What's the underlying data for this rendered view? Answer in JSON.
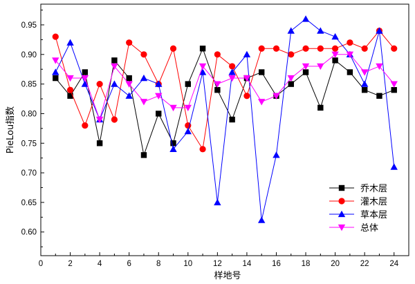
{
  "chart_data": {
    "type": "line",
    "title": "",
    "xlabel": "样地号",
    "ylabel": "PieLou指数",
    "xlim": [
      0,
      25
    ],
    "ylim": [
      0.56,
      0.985
    ],
    "x_ticks": [
      0,
      2,
      4,
      6,
      8,
      10,
      12,
      14,
      16,
      18,
      20,
      22,
      24
    ],
    "y_ticks": [
      0.6,
      0.65,
      0.7,
      0.75,
      0.8,
      0.85,
      0.9,
      0.95
    ],
    "x": [
      1,
      2,
      3,
      4,
      5,
      6,
      7,
      8,
      9,
      10,
      11,
      12,
      13,
      14,
      15,
      16,
      17,
      18,
      19,
      20,
      21,
      22,
      23,
      24
    ],
    "legend_position": "bottom-right",
    "series": [
      {
        "name": "乔木层",
        "color": "#000000",
        "marker": "square",
        "values": [
          0.86,
          0.83,
          0.87,
          0.75,
          0.89,
          0.86,
          0.73,
          0.8,
          0.75,
          0.85,
          0.91,
          0.84,
          0.79,
          0.86,
          0.87,
          0.83,
          0.85,
          0.87,
          0.81,
          0.89,
          0.87,
          0.84,
          0.83,
          0.84
        ]
      },
      {
        "name": "灌木层",
        "color": "#ff0000",
        "marker": "circle",
        "values": [
          0.93,
          0.84,
          0.78,
          0.85,
          0.79,
          0.92,
          0.9,
          0.85,
          0.91,
          0.78,
          0.74,
          0.9,
          0.88,
          0.83,
          0.91,
          0.91,
          0.9,
          0.91,
          0.91,
          0.91,
          0.92,
          0.91,
          0.94,
          0.91
        ]
      },
      {
        "name": "草本层",
        "color": "#0000ff",
        "marker": "triangle-up",
        "values": [
          0.87,
          0.92,
          0.85,
          0.79,
          0.85,
          0.83,
          0.86,
          0.85,
          0.74,
          0.77,
          0.87,
          0.65,
          0.87,
          0.9,
          0.62,
          0.73,
          0.94,
          0.96,
          0.94,
          0.93,
          0.9,
          0.85,
          0.94,
          0.71
        ]
      },
      {
        "name": "总体",
        "color": "#ff00ff",
        "marker": "triangle-down",
        "values": [
          0.89,
          0.86,
          0.86,
          0.79,
          0.88,
          0.85,
          0.82,
          0.83,
          0.81,
          0.81,
          0.88,
          0.85,
          0.86,
          0.86,
          0.82,
          0.83,
          0.86,
          0.88,
          0.88,
          0.9,
          0.9,
          0.87,
          0.88,
          0.85
        ]
      }
    ]
  }
}
